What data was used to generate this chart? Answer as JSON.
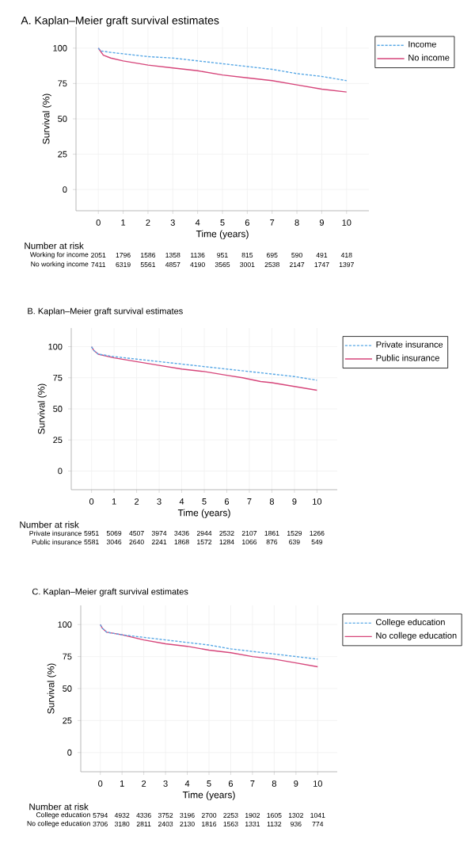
{
  "chart_data": [
    {
      "type": "line",
      "title": "A. Kaplan–Meier graft survival estimates",
      "xlabel": "Time (years)",
      "ylabel": "Survival (%)",
      "xlim": [
        -0.9,
        10.9
      ],
      "ylim": [
        -15,
        115
      ],
      "xticks": [
        0,
        1,
        2,
        3,
        4,
        5,
        6,
        7,
        8,
        9,
        10
      ],
      "yticks": [
        0,
        25,
        50,
        75,
        100
      ],
      "grid": true,
      "legend": "top right",
      "series": [
        {
          "name": "Income",
          "color": "#5aa9e6",
          "line_style": "dashed",
          "x": [
            0,
            0.1,
            0.5,
            1,
            2,
            3,
            4,
            5,
            6,
            7,
            8,
            9,
            10
          ],
          "values": [
            100,
            98,
            97,
            96,
            94,
            93,
            91,
            89,
            87,
            85,
            82,
            80,
            77
          ]
        },
        {
          "name": "No income",
          "color": "#d6457a",
          "line_style": "solid",
          "x": [
            0,
            0.2,
            0.5,
            1,
            2,
            3,
            4,
            5,
            6,
            7,
            8,
            9,
            10
          ],
          "values": [
            100,
            95,
            93,
            91,
            88,
            86,
            84,
            81,
            79,
            77,
            74,
            71,
            69
          ]
        }
      ],
      "annotations": [
        "Number at risk",
        "Working for income",
        "2051",
        "1796",
        "1586",
        "1358",
        "1136",
        "951",
        "815",
        "695",
        "590",
        "491",
        "418",
        "No working income",
        "7411",
        "6319",
        "5561",
        "4857",
        "4190",
        "3565",
        "3001",
        "2538",
        "2147",
        "1747",
        "1397"
      ]
    },
    {
      "type": "line",
      "title": "B. Kaplan–Meier graft survival estimates",
      "xlabel": "Time (years)",
      "ylabel": "Survival (%)",
      "xlim": [
        -0.9,
        10.9
      ],
      "ylim": [
        -15,
        115
      ],
      "xticks": [
        0,
        1,
        2,
        3,
        4,
        5,
        6,
        7,
        8,
        9,
        10
      ],
      "yticks": [
        0,
        25,
        50,
        75,
        100
      ],
      "grid": true,
      "legend": "top right",
      "series": [
        {
          "name": "Private insurance",
          "color": "#5aa9e6",
          "line_style": "dashed",
          "x": [
            0,
            0.1,
            0.3,
            1,
            2,
            3,
            4,
            5,
            6,
            7,
            8,
            9,
            10
          ],
          "values": [
            100,
            97,
            94,
            92,
            90,
            88,
            86,
            84,
            82,
            80,
            78,
            76,
            73
          ]
        },
        {
          "name": "Public insurance",
          "color": "#d6457a",
          "line_style": "solid",
          "x": [
            0,
            0.1,
            0.3,
            1,
            2,
            3,
            4,
            5,
            6,
            6.7,
            7.5,
            8,
            9,
            10
          ],
          "values": [
            100,
            97,
            94,
            91,
            88,
            85,
            82,
            80,
            77,
            75,
            72,
            71,
            68,
            65
          ]
        }
      ],
      "annotations": [
        "Number at risk",
        "Private insurance",
        "5951",
        "5069",
        "4507",
        "3974",
        "3436",
        "2944",
        "2532",
        "2107",
        "1861",
        "1529",
        "1266",
        "Public insurance",
        "5581",
        "3046",
        "2640",
        "2241",
        "1868",
        "1572",
        "1284",
        "1066",
        "876",
        "639",
        "549"
      ]
    },
    {
      "type": "line",
      "title": "C. Kaplan–Meier graft survival estimates",
      "xlabel": "Time (years)",
      "ylabel": "Survival (%)",
      "xlim": [
        -0.9,
        10.9
      ],
      "ylim": [
        -15,
        115
      ],
      "xticks": [
        0,
        1,
        2,
        3,
        4,
        5,
        6,
        7,
        8,
        9,
        10
      ],
      "yticks": [
        0,
        25,
        50,
        75,
        100
      ],
      "grid": true,
      "legend": "top right",
      "series": [
        {
          "name": "College education",
          "color": "#5aa9e6",
          "line_style": "dashed",
          "x": [
            0,
            0.1,
            0.3,
            1,
            2,
            3,
            4,
            5,
            6,
            7,
            8,
            9,
            10
          ],
          "values": [
            100,
            97,
            94,
            92,
            90,
            88,
            86,
            84,
            81,
            79,
            77,
            75,
            73
          ]
        },
        {
          "name": "No college education",
          "color": "#d6457a",
          "line_style": "solid",
          "x": [
            0,
            0.1,
            0.3,
            1,
            2,
            3,
            4,
            5,
            6,
            7,
            8,
            9,
            10
          ],
          "values": [
            100,
            97,
            94,
            92,
            88,
            85,
            83,
            80,
            78,
            75,
            73,
            70,
            67
          ]
        }
      ],
      "annotations": [
        "Number at risk",
        "College education",
        "5794",
        "4932",
        "4336",
        "3752",
        "3196",
        "2700",
        "2253",
        "1902",
        "1605",
        "1302",
        "1041",
        "No college education",
        "3706",
        "3180",
        "2811",
        "2403",
        "2130",
        "1816",
        "1563",
        "1331",
        "1132",
        "936",
        "774"
      ]
    }
  ]
}
